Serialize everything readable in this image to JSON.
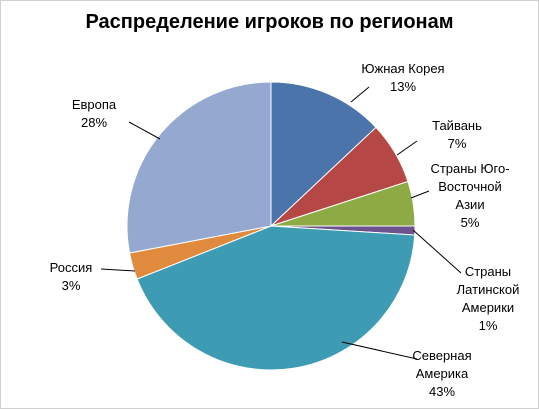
{
  "chart_data": {
    "type": "pie",
    "title": "Распределение игроков по регионам",
    "slices": [
      {
        "label_lines": [
          "Южная Корея"
        ],
        "pct_text": "13%",
        "value": 13,
        "color": "#4a74aa"
      },
      {
        "label_lines": [
          "Тайвань"
        ],
        "pct_text": "7%",
        "value": 7,
        "color": "#b54744"
      },
      {
        "label_lines": [
          "Страны Юго-",
          "Восточной",
          "Азии"
        ],
        "pct_text": "5%",
        "value": 5,
        "color": "#8daa44"
      },
      {
        "label_lines": [
          "Страны",
          "Латинской",
          "Америки"
        ],
        "pct_text": "1%",
        "value": 1,
        "color": "#6c5390"
      },
      {
        "label_lines": [
          "Северная",
          "Америка"
        ],
        "pct_text": "43%",
        "value": 43,
        "color": "#3d9cb3"
      },
      {
        "label_lines": [
          "Россия"
        ],
        "pct_text": "3%",
        "value": 3,
        "color": "#df8a3c"
      },
      {
        "label_lines": [
          "Европа"
        ],
        "pct_text": "28%",
        "value": 28,
        "color": "#95a9d0"
      }
    ],
    "legend": "none",
    "data_labels": "outside with leader lines"
  }
}
